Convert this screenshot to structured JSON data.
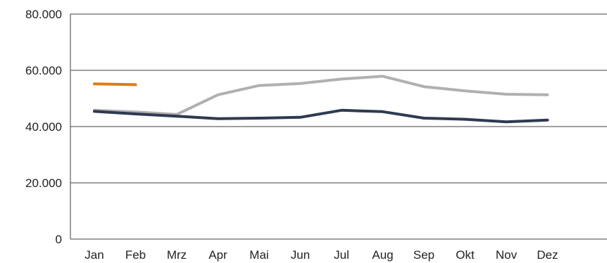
{
  "chart_data": {
    "type": "line",
    "categories": [
      "Jan",
      "Feb",
      "Mrz",
      "Apr",
      "Mai",
      "Jun",
      "Jul",
      "Aug",
      "Sep",
      "Okt",
      "Nov",
      "Dez"
    ],
    "ylim": [
      0,
      80000
    ],
    "yticks": [
      0,
      20000,
      40000,
      60000,
      80000
    ],
    "ytick_labels": [
      "0",
      "20.000",
      "40.000",
      "60.000",
      "80.000"
    ],
    "grid": true,
    "legend": "none",
    "series": [
      {
        "color": "#b0b0b0",
        "values": [
          45800,
          45200,
          44300,
          51300,
          54600,
          55300,
          56900,
          57900,
          54200,
          52700,
          51500,
          51300
        ]
      },
      {
        "color": "#2e3a50",
        "values": [
          45400,
          44500,
          43700,
          42800,
          43000,
          43300,
          45800,
          45300,
          43000,
          42600,
          41700,
          42300
        ]
      },
      {
        "color": "#e07b12",
        "values": [
          55200,
          54900,
          null,
          null,
          null,
          null,
          null,
          null,
          null,
          null,
          null,
          null
        ]
      }
    ]
  }
}
